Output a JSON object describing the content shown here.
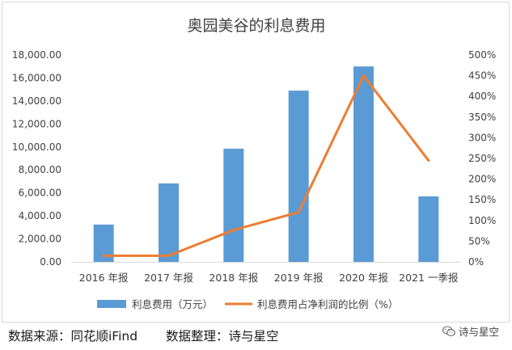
{
  "chart_data": {
    "type": "bar+line",
    "title": "奥园美谷的利息费用",
    "categories": [
      "2016 年报",
      "2017 年报",
      "2018 年报",
      "2019 年报",
      "2020 年报",
      "2021 一季报"
    ],
    "series": [
      {
        "name": "利息费用（万元）",
        "type": "bar",
        "axis": "left",
        "color": "#5b9bd5",
        "values": [
          3250,
          6830,
          9850,
          14900,
          17000,
          5700
        ]
      },
      {
        "name": "利息费用占净利润的比例（%）",
        "type": "line",
        "axis": "right",
        "color": "#ed7d31",
        "values": [
          15,
          15,
          77,
          120,
          450,
          245
        ]
      }
    ],
    "left_axis": {
      "min": 0,
      "max": 18000,
      "step": 2000,
      "tick_labels": [
        "0.00",
        "2,000.00",
        "4,000.00",
        "6,000.00",
        "8,000.00",
        "10,000.00",
        "12,000.00",
        "14,000.00",
        "16,000.00",
        "18,000.00"
      ]
    },
    "right_axis": {
      "min": 0,
      "max": 500,
      "step": 50,
      "tick_labels": [
        "0%",
        "50%",
        "100%",
        "150%",
        "200%",
        "250%",
        "300%",
        "350%",
        "400%",
        "450%",
        "500%"
      ]
    },
    "grid": false,
    "legend_position": "bottom"
  },
  "footer": {
    "source": "数据来源：同花顺iFind",
    "organizer": "数据整理：诗与星空"
  },
  "watermark": {
    "text": "诗与星空",
    "icon": "wechat-icon"
  }
}
